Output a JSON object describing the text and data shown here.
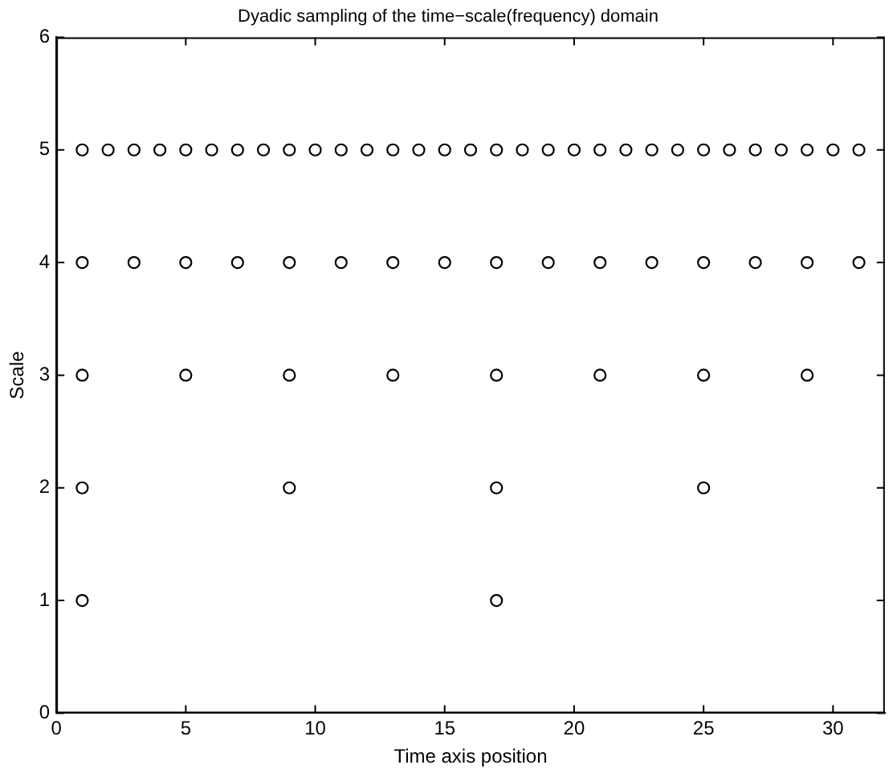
{
  "chart_data": {
    "type": "scatter",
    "title": "Dyadic sampling of the time−scale(frequency) domain",
    "xlabel": "Time axis position",
    "ylabel": "Scale",
    "x": [
      1,
      2,
      3,
      4,
      5,
      6,
      7,
      8,
      9,
      10,
      11,
      12,
      13,
      14,
      15,
      16,
      17,
      18,
      19,
      20,
      21,
      22,
      23,
      24,
      25,
      26,
      27,
      28,
      29,
      30,
      31,
      1,
      3,
      5,
      7,
      9,
      11,
      13,
      15,
      17,
      19,
      21,
      23,
      25,
      27,
      29,
      31,
      1,
      5,
      9,
      13,
      17,
      21,
      25,
      29,
      1,
      9,
      17,
      25,
      1,
      17
    ],
    "series": [
      {
        "color": "#000000",
        "values": [
          5,
          5,
          5,
          5,
          5,
          5,
          5,
          5,
          5,
          5,
          5,
          5,
          5,
          5,
          5,
          5,
          5,
          5,
          5,
          5,
          5,
          5,
          5,
          5,
          5,
          5,
          5,
          5,
          5,
          5,
          5,
          4,
          4,
          4,
          4,
          4,
          4,
          4,
          4,
          4,
          4,
          4,
          4,
          4,
          4,
          4,
          4,
          3,
          3,
          3,
          3,
          3,
          3,
          3,
          3,
          2,
          2,
          2,
          2,
          1,
          1
        ]
      }
    ],
    "xlim": [
      0,
      32
    ],
    "xticks": [
      0,
      5,
      10,
      15,
      20,
      25,
      30
    ],
    "ylim": [
      0,
      6
    ],
    "yticks": [
      0,
      1,
      2,
      3,
      4,
      5,
      6
    ],
    "grid": false,
    "legend": false,
    "marker": "circle"
  }
}
